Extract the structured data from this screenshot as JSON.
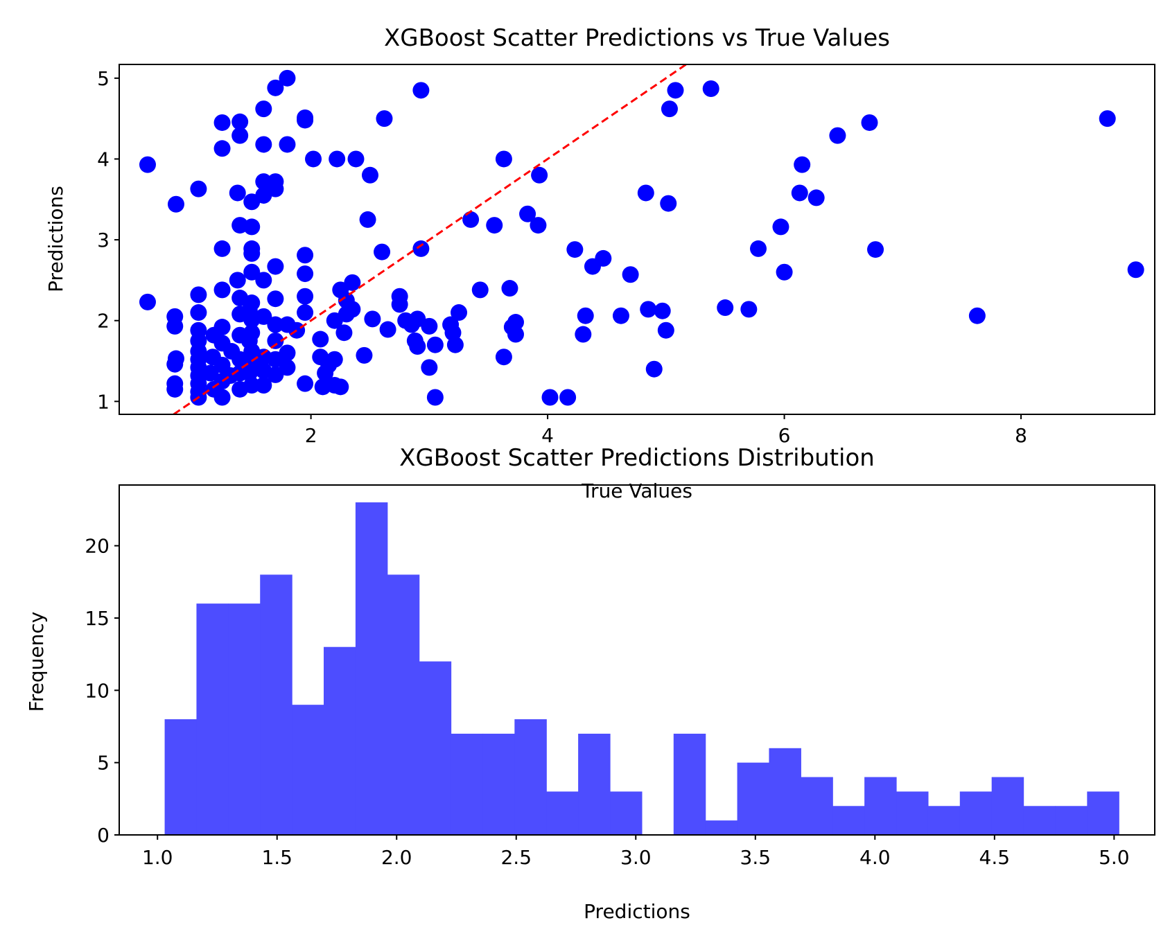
{
  "chart_data": [
    {
      "type": "scatter",
      "title": "XGBoost Scatter Predictions vs True Values",
      "xlabel": "True Values",
      "ylabel": "Predictions",
      "xlim": [
        0.38,
        9.13
      ],
      "ylim": [
        0.84,
        5.17
      ],
      "xticks": [
        2,
        4,
        6,
        8
      ],
      "yticks": [
        1,
        2,
        3,
        4,
        5
      ],
      "grid": false,
      "marker_color": "#0000ff",
      "reference_line": {
        "slope": 1,
        "intercept": 0,
        "color": "#ff0000",
        "style": "dashed"
      },
      "points": [
        [
          0.62,
          3.93
        ],
        [
          0.62,
          2.23
        ],
        [
          0.86,
          3.44
        ],
        [
          0.85,
          2.05
        ],
        [
          0.85,
          1.93
        ],
        [
          0.86,
          1.53
        ],
        [
          0.85,
          1.46
        ],
        [
          0.85,
          1.22
        ],
        [
          0.85,
          1.15
        ],
        [
          1.05,
          3.63
        ],
        [
          1.05,
          2.32
        ],
        [
          1.05,
          2.1
        ],
        [
          1.05,
          1.88
        ],
        [
          1.05,
          1.75
        ],
        [
          1.05,
          1.62
        ],
        [
          1.05,
          1.52
        ],
        [
          1.05,
          1.42
        ],
        [
          1.05,
          1.32
        ],
        [
          1.05,
          1.22
        ],
        [
          1.05,
          1.12
        ],
        [
          1.05,
          1.05
        ],
        [
          1.18,
          1.82
        ],
        [
          1.17,
          1.55
        ],
        [
          1.15,
          1.35
        ],
        [
          1.18,
          1.15
        ],
        [
          1.25,
          4.45
        ],
        [
          1.25,
          4.13
        ],
        [
          1.25,
          2.89
        ],
        [
          1.25,
          2.38
        ],
        [
          1.25,
          1.92
        ],
        [
          1.25,
          1.72
        ],
        [
          1.25,
          1.45
        ],
        [
          1.25,
          1.25
        ],
        [
          1.25,
          1.05
        ],
        [
          1.33,
          1.62
        ],
        [
          1.32,
          1.32
        ],
        [
          1.4,
          4.46
        ],
        [
          1.4,
          4.29
        ],
        [
          1.38,
          3.58
        ],
        [
          1.4,
          3.18
        ],
        [
          1.38,
          2.5
        ],
        [
          1.4,
          2.28
        ],
        [
          1.4,
          2.08
        ],
        [
          1.4,
          1.82
        ],
        [
          1.4,
          1.52
        ],
        [
          1.4,
          1.35
        ],
        [
          1.4,
          1.15
        ],
        [
          1.48,
          2.12
        ],
        [
          1.48,
          1.75
        ],
        [
          1.48,
          1.35
        ],
        [
          1.5,
          3.47
        ],
        [
          1.5,
          3.16
        ],
        [
          1.5,
          2.89
        ],
        [
          1.5,
          2.83
        ],
        [
          1.5,
          2.6
        ],
        [
          1.5,
          2.22
        ],
        [
          1.5,
          2.01
        ],
        [
          1.5,
          1.85
        ],
        [
          1.5,
          1.62
        ],
        [
          1.5,
          1.47
        ],
        [
          1.5,
          1.2
        ],
        [
          1.6,
          4.62
        ],
        [
          1.6,
          4.18
        ],
        [
          1.6,
          3.72
        ],
        [
          1.6,
          3.55
        ],
        [
          1.6,
          2.5
        ],
        [
          1.6,
          2.05
        ],
        [
          1.6,
          1.55
        ],
        [
          1.6,
          1.38
        ],
        [
          1.6,
          1.2
        ],
        [
          1.7,
          4.88
        ],
        [
          1.7,
          3.72
        ],
        [
          1.7,
          3.63
        ],
        [
          1.7,
          2.67
        ],
        [
          1.7,
          2.27
        ],
        [
          1.7,
          1.95
        ],
        [
          1.7,
          1.75
        ],
        [
          1.7,
          1.52
        ],
        [
          1.7,
          1.33
        ],
        [
          1.8,
          5.0
        ],
        [
          1.8,
          4.18
        ],
        [
          1.8,
          1.95
        ],
        [
          1.8,
          1.6
        ],
        [
          1.8,
          1.42
        ],
        [
          1.88,
          1.88
        ],
        [
          1.95,
          4.51
        ],
        [
          1.95,
          4.48
        ],
        [
          1.95,
          2.81
        ],
        [
          1.95,
          2.58
        ],
        [
          1.95,
          2.3
        ],
        [
          1.95,
          2.1
        ],
        [
          1.95,
          1.22
        ],
        [
          2.02,
          4.0
        ],
        [
          2.08,
          1.77
        ],
        [
          2.08,
          1.55
        ],
        [
          2.1,
          1.18
        ],
        [
          2.12,
          1.35
        ],
        [
          2.15,
          1.45
        ],
        [
          2.2,
          1.52
        ],
        [
          2.2,
          1.2
        ],
        [
          2.25,
          1.18
        ],
        [
          2.22,
          4.0
        ],
        [
          2.2,
          2.0
        ],
        [
          2.25,
          2.38
        ],
        [
          2.28,
          1.85
        ],
        [
          2.3,
          2.25
        ],
        [
          2.3,
          2.08
        ],
        [
          2.35,
          2.47
        ],
        [
          2.35,
          2.14
        ],
        [
          2.38,
          4.0
        ],
        [
          2.45,
          1.57
        ],
        [
          2.48,
          3.25
        ],
        [
          2.5,
          3.8
        ],
        [
          2.52,
          2.02
        ],
        [
          2.6,
          2.85
        ],
        [
          2.62,
          4.5
        ],
        [
          2.65,
          1.89
        ],
        [
          2.75,
          2.3
        ],
        [
          2.75,
          2.2
        ],
        [
          2.8,
          2.0
        ],
        [
          2.85,
          1.95
        ],
        [
          2.88,
          1.75
        ],
        [
          2.9,
          2.02
        ],
        [
          2.93,
          4.85
        ],
        [
          2.93,
          2.89
        ],
        [
          2.9,
          1.68
        ],
        [
          3.0,
          1.93
        ],
        [
          3.0,
          1.42
        ],
        [
          3.05,
          1.05
        ],
        [
          3.05,
          1.7
        ],
        [
          3.18,
          1.95
        ],
        [
          3.2,
          1.85
        ],
        [
          3.22,
          1.7
        ],
        [
          3.25,
          2.1
        ],
        [
          3.35,
          3.25
        ],
        [
          3.43,
          2.38
        ],
        [
          3.55,
          3.18
        ],
        [
          3.63,
          4.0
        ],
        [
          3.63,
          1.55
        ],
        [
          3.68,
          2.4
        ],
        [
          3.7,
          1.92
        ],
        [
          3.73,
          1.98
        ],
        [
          3.73,
          1.83
        ],
        [
          3.83,
          3.32
        ],
        [
          3.92,
          3.18
        ],
        [
          3.93,
          3.8
        ],
        [
          4.02,
          1.05
        ],
        [
          4.17,
          1.05
        ],
        [
          4.23,
          2.88
        ],
        [
          4.3,
          1.83
        ],
        [
          4.32,
          2.06
        ],
        [
          4.38,
          2.67
        ],
        [
          4.47,
          2.77
        ],
        [
          4.62,
          2.06
        ],
        [
          4.7,
          2.57
        ],
        [
          4.83,
          3.58
        ],
        [
          4.85,
          2.14
        ],
        [
          4.9,
          1.4
        ],
        [
          4.97,
          2.12
        ],
        [
          5.0,
          1.88
        ],
        [
          5.02,
          3.45
        ],
        [
          5.03,
          4.62
        ],
        [
          5.08,
          4.85
        ],
        [
          5.38,
          4.87
        ],
        [
          5.5,
          2.16
        ],
        [
          5.7,
          2.14
        ],
        [
          5.78,
          2.89
        ],
        [
          5.97,
          3.16
        ],
        [
          6.0,
          2.6
        ],
        [
          6.13,
          3.58
        ],
        [
          6.15,
          3.93
        ],
        [
          6.27,
          3.52
        ],
        [
          6.45,
          4.29
        ],
        [
          6.72,
          4.45
        ],
        [
          6.77,
          2.88
        ],
        [
          7.63,
          2.06
        ],
        [
          8.73,
          4.5
        ],
        [
          8.97,
          2.63
        ]
      ]
    },
    {
      "type": "bar",
      "title": "XGBoost Scatter Predictions Distribution",
      "xlabel": "Predictions",
      "ylabel": "Frequency",
      "xlim": [
        0.84,
        5.17
      ],
      "ylim": [
        0,
        24.2
      ],
      "xticks": [
        "1.0",
        "1.5",
        "2.0",
        "2.5",
        "3.0",
        "3.5",
        "4.0",
        "4.5",
        "5.0"
      ],
      "yticks": [
        0,
        5,
        10,
        15,
        20
      ],
      "grid": false,
      "bar_color": "#4d4dff",
      "bin_edges": [
        1.03,
        1.163,
        1.296,
        1.429,
        1.562,
        1.695,
        1.828,
        1.961,
        2.094,
        2.227,
        2.36,
        2.493,
        2.626,
        2.759,
        2.892,
        3.025,
        3.158,
        3.291,
        3.424,
        3.557,
        3.69,
        3.823,
        3.956,
        4.089,
        4.222,
        4.355,
        4.488,
        4.621,
        4.754,
        4.887,
        5.02
      ],
      "values": [
        8,
        16,
        16,
        18,
        9,
        13,
        23,
        18,
        12,
        7,
        7,
        8,
        3,
        7,
        3,
        0,
        7,
        1,
        5,
        6,
        4,
        2,
        4,
        3,
        2,
        3,
        4,
        2,
        2,
        3
      ]
    }
  ]
}
